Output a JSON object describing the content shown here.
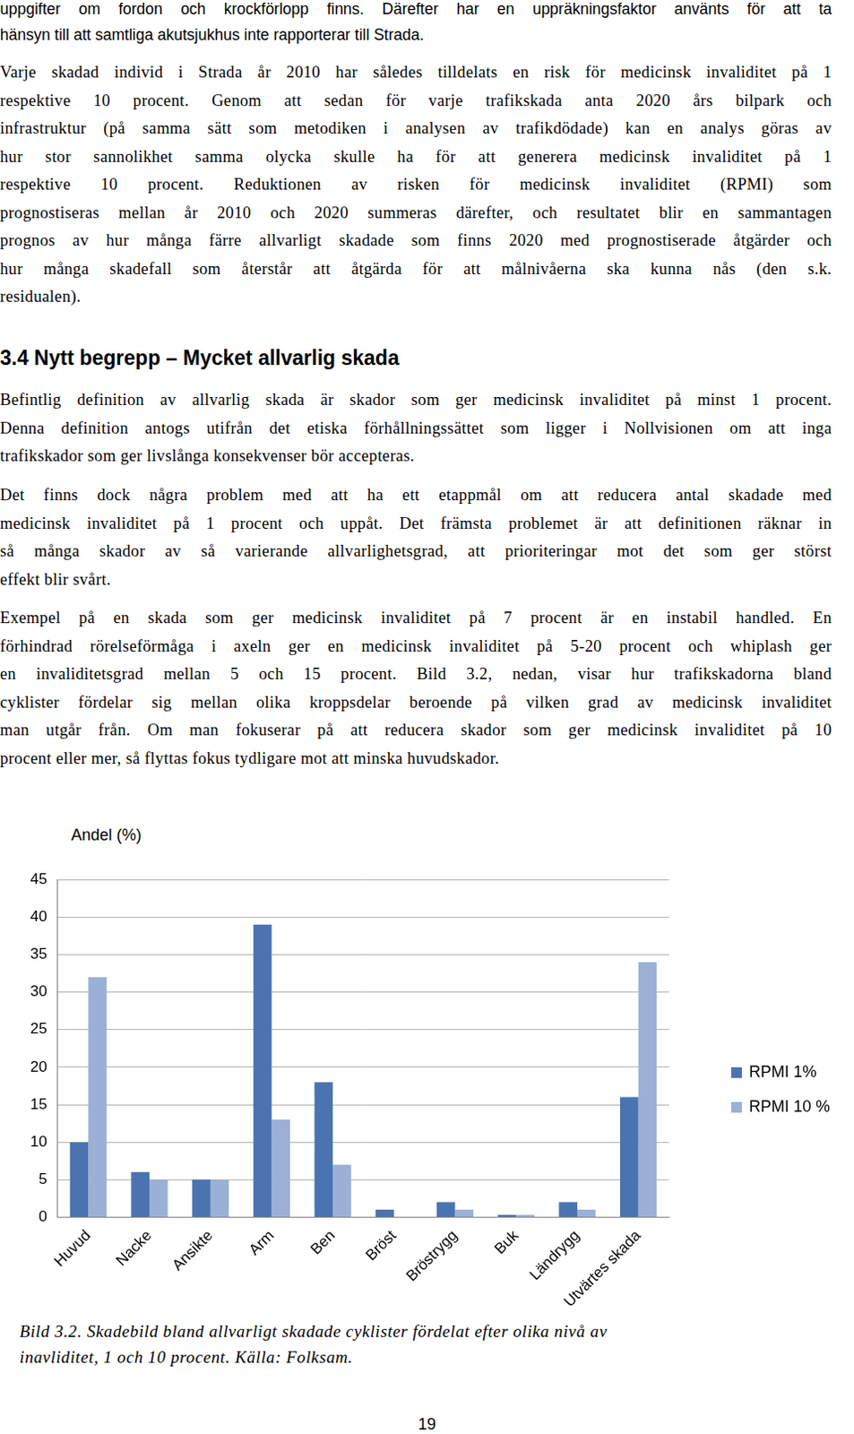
{
  "paragraphs": [
    {
      "lines": [
        "uppgifter om fordon och krockförlopp finns. Därefter har en uppräkningsfaktor använts för att ta",
        "hänsyn till att samtliga akutsjukhus inte rapporterar till Strada."
      ]
    },
    {
      "lines": [
        "Varje skadad individ i Strada år 2010 har således tilldelats en risk för medicinsk invaliditet på 1",
        "respektive 10 procent. Genom att sedan för varje trafikskada anta 2020 års bilpark och",
        "infrastruktur (på samma sätt som metodiken i analysen av trafikdödade) kan en analys göras av",
        "hur stor sannolikhet samma olycka skulle ha för att generera medicinsk invaliditet på 1",
        "respektive 10 procent. Reduktionen av risken för medicinsk invaliditet (RPMI) som",
        "prognostiseras mellan år 2010 och 2020 summeras därefter, och resultatet blir en sammantagen",
        "prognos av hur många färre allvarligt skadade som finns 2020 med prognostiserade åtgärder och",
        "hur många skadefall som återstår att åtgärda för att målnivåerna ska kunna nås (den s.k.",
        "residualen)."
      ]
    }
  ],
  "heading": "3.4 Nytt begrepp – Mycket allvarlig skada",
  "section_paragraphs": [
    {
      "lines": [
        "Befintlig definition av allvarlig skada är skador som ger medicinsk invaliditet på minst 1 procent.",
        "Denna definition antogs utifrån det etiska förhållningssättet som ligger i Nollvisionen om att inga",
        "trafikskador som ger livslånga konsekvenser bör accepteras."
      ]
    },
    {
      "lines": [
        "Det finns dock några problem med att ha ett etappmål om att reducera antal skadade med",
        "medicinsk invaliditet på 1 procent och uppåt. Det främsta problemet är att definitionen räknar in",
        "så många skador av så varierande allvarlighetsgrad, att prioriteringar mot det som ger störst",
        "effekt blir svårt."
      ]
    },
    {
      "lines": [
        "Exempel på en skada som ger medicinsk invaliditet på 7 procent är en instabil handled. En",
        "förhindrad rörelseförmåga i axeln ger en medicinsk invaliditet på 5-20 procent och whiplash ger",
        "en invaliditetsgrad mellan 5 och 15 procent. Bild 3.2, nedan, visar hur trafikskadorna bland",
        "cyklister fördelar sig mellan olika kroppsdelar beroende på vilken grad av medicinsk invaliditet",
        "man utgår från. Om man fokuserar på att reducera skador som ger medicinsk invaliditet på 10",
        "procent eller mer, så flyttas fokus tydligare mot att minska huvudskador."
      ]
    }
  ],
  "chart_data": {
    "type": "bar",
    "y_label": "Andel (%)",
    "categories": [
      "Huvud",
      "Nacke",
      "Ansikte",
      "Arm",
      "Ben",
      "Bröst",
      "Bröstrygg",
      "Buk",
      "Ländrygg",
      "Utvärtes skada"
    ],
    "series": [
      {
        "name": "RPMI 1%",
        "color": "#4a74b1",
        "values": [
          10,
          6,
          5,
          39,
          18,
          1,
          2,
          0.3,
          2,
          16
        ]
      },
      {
        "name": "RPMI 10 %",
        "color": "#9bb0d6",
        "values": [
          32,
          5,
          5,
          13,
          7,
          0,
          1,
          0.3,
          1,
          34
        ]
      }
    ],
    "ylim": [
      0,
      45
    ],
    "yticks": [
      0,
      5,
      10,
      15,
      20,
      25,
      30,
      35,
      40,
      45
    ],
    "grid": true,
    "legend": "right"
  },
  "caption": [
    "Bild 3.2. Skadebild bland allvarligt skadade cyklister fördelat efter olika nivå av",
    "inavliditet, 1 och 10 procent. Källa: Folksam."
  ],
  "page_number": "19"
}
